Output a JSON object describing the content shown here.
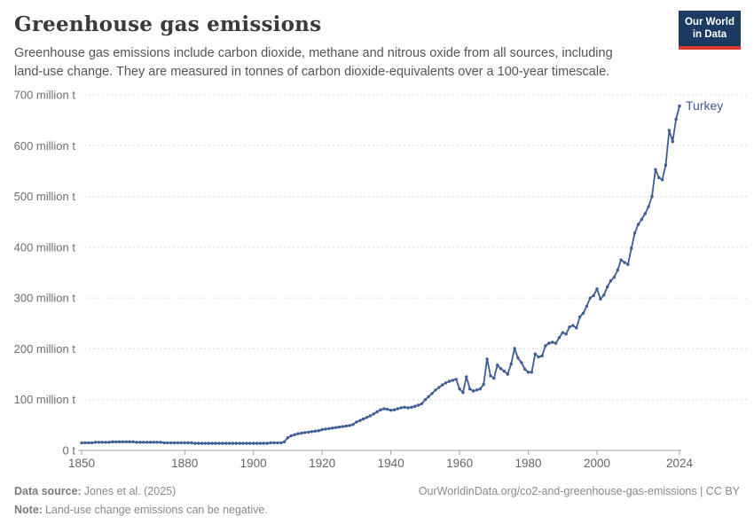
{
  "header": {
    "title": "Greenhouse gas emissions",
    "subtitle": "Greenhouse gas emissions include carbon dioxide, methane and nitrous oxide from all sources, including land-use change. They are measured in tonnes of carbon dioxide-equivalents over a 100-year timescale.",
    "logo": {
      "line1": "Our World",
      "line2": "in Data"
    }
  },
  "chart_data": {
    "type": "line",
    "title": "Greenhouse gas emissions",
    "entity_label": "Turkey",
    "unit": "million t",
    "ylabel": "",
    "xlabel": "",
    "grid": true,
    "legend_position": "end-of-line",
    "ylim": [
      0,
      700
    ],
    "xlim": [
      1850,
      2024
    ],
    "years": {
      "start": 1850,
      "end": 2024,
      "step": 1
    },
    "x_ticks": [
      1850,
      1880,
      1900,
      1920,
      1940,
      1960,
      1980,
      2000,
      2024
    ],
    "y_ticks": [
      0,
      100,
      200,
      300,
      400,
      500,
      600,
      700
    ],
    "y_tick_labels": [
      "0 t",
      "100 million t",
      "200 million t",
      "300 million t",
      "400 million t",
      "500 million t",
      "600 million t",
      "700 million t"
    ],
    "line_color": "#3e5c96",
    "series": [
      {
        "name": "Turkey",
        "values": [
          15,
          15,
          15,
          15,
          16,
          16,
          16,
          16,
          16,
          17,
          17,
          17,
          17,
          17,
          17,
          17,
          16,
          16,
          16,
          16,
          16,
          16,
          16,
          16,
          15,
          15,
          15,
          15,
          15,
          15,
          15,
          15,
          15,
          14,
          14,
          14,
          14,
          14,
          14,
          14,
          14,
          14,
          14,
          14,
          14,
          14,
          14,
          14,
          14,
          14,
          14,
          14,
          14,
          14,
          14,
          15,
          15,
          15,
          15,
          17,
          25,
          29,
          31,
          33,
          34,
          35,
          36,
          37,
          38,
          39,
          41,
          42,
          43,
          44,
          45,
          46,
          47,
          48,
          49,
          51,
          56,
          59,
          62,
          65,
          68,
          72,
          76,
          80,
          82,
          81,
          79,
          80,
          82,
          84,
          85,
          84,
          85,
          87,
          89,
          92,
          100,
          106,
          112,
          119,
          124,
          129,
          133,
          136,
          138,
          140,
          121,
          114,
          145,
          121,
          117,
          119,
          121,
          130,
          180,
          147,
          142,
          168,
          161,
          156,
          150,
          170,
          201,
          182,
          173,
          160,
          154,
          154,
          190,
          184,
          186,
          206,
          211,
          213,
          211,
          222,
          232,
          229,
          243,
          246,
          241,
          263,
          270,
          284,
          300,
          305,
          318,
          298,
          306,
          322,
          334,
          341,
          355,
          375,
          370,
          366,
          398,
          428,
          445,
          455,
          466,
          480,
          500,
          553,
          537,
          533,
          562,
          630,
          608,
          652,
          678
        ]
      }
    ]
  },
  "footer": {
    "datasource_label": "Data source:",
    "datasource": "Jones et al. (2025)",
    "note_label": "Note:",
    "note": "Land-use change emissions can be negative.",
    "link": "OurWorldinData.org/co2-and-greenhouse-gas-emissions | CC BY"
  }
}
